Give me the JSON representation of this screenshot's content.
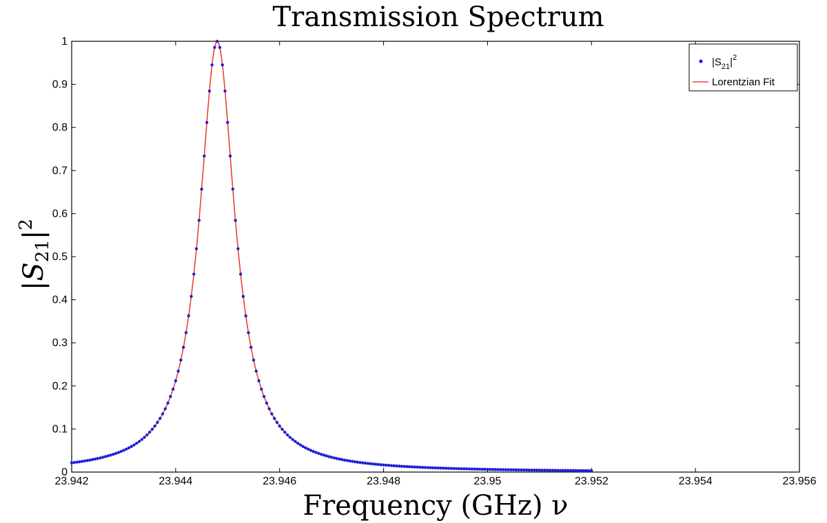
{
  "chart_data": {
    "type": "scatter",
    "title": "Transmission Spectrum",
    "xlabel": "Frequency (GHz) ν",
    "ylabel": "|S21|²",
    "xlim": [
      23.942,
      23.956
    ],
    "ylim": [
      0,
      1
    ],
    "xticks": [
      "23.942",
      "23.944",
      "23.946",
      "23.948",
      "23.95",
      "23.952",
      "23.954",
      "23.956"
    ],
    "yticks": [
      "0",
      "0.1",
      "0.2",
      "0.3",
      "0.4",
      "0.5",
      "0.6",
      "0.7",
      "0.8",
      "0.9",
      "1"
    ],
    "grid": false,
    "legend_position": "top-right",
    "series": [
      {
        "name": "|S21|²",
        "kind": "markers",
        "color": "#1f1fdc",
        "lorentzian": {
          "center_ghz": 23.9448,
          "fwhm_ghz": 0.00083,
          "peak": 1.0,
          "x_start": 23.942,
          "x_end": 23.952,
          "n_points": 201
        }
      },
      {
        "name": "Lorentzian Fit",
        "kind": "line",
        "color": "#e8403a",
        "lorentzian": {
          "center_ghz": 23.9448,
          "fwhm_ghz": 0.00083,
          "peak": 1.0,
          "x_start": 23.942,
          "x_end": 23.952
        }
      }
    ]
  },
  "legend": {
    "marker_label_main": "|S",
    "marker_label_sub": "21",
    "marker_label_close": "|",
    "marker_label_sup": "2",
    "line_label": "Lorentzian Fit"
  },
  "labels": {
    "ylabel_main": "|S",
    "ylabel_sub": "21",
    "ylabel_close": "|",
    "ylabel_sup": "2"
  }
}
